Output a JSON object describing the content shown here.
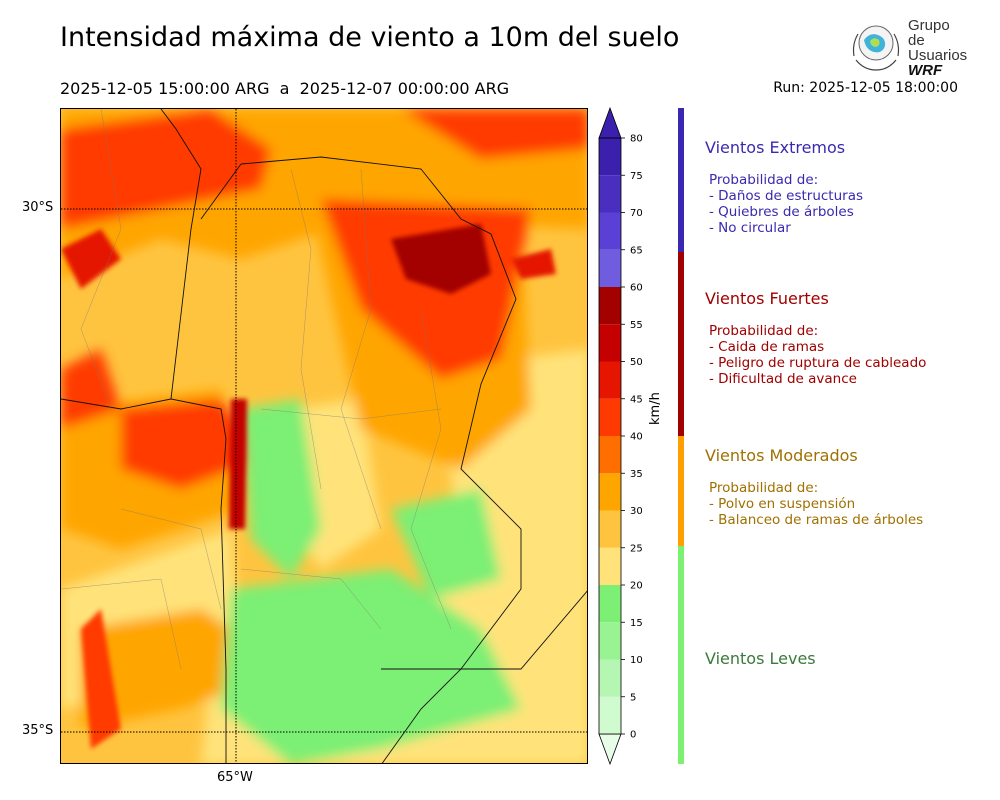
{
  "header": {
    "title": "Intensidad máxima de viento a 10m del suelo",
    "period": "2025-12-05 15:00:00 ARG  a  2025-12-07 00:00:00 ARG",
    "run": "Run: 2025-12-05 18:00:00"
  },
  "logo": {
    "line1": "Grupo de",
    "line2": "Usuarios",
    "line3": "WRF"
  },
  "map": {
    "lat_labels": [
      "30°S",
      "35°S"
    ],
    "lon_labels": [
      "65°W"
    ]
  },
  "colorbar": {
    "unit": "km/h",
    "ticks": [
      "0",
      "5",
      "10",
      "15",
      "20",
      "25",
      "30",
      "35",
      "40",
      "45",
      "50",
      "55",
      "60",
      "65",
      "70",
      "75",
      "80"
    ],
    "colors": [
      "#e8fde8",
      "#d0fbcf",
      "#b5f7b2",
      "#99f393",
      "#7cef74",
      "#ffe37a",
      "#ffc43f",
      "#ffa500",
      "#ff6e00",
      "#ff3a00",
      "#e51500",
      "#c40000",
      "#a30000",
      "#6f5cdf",
      "#5a40d4",
      "#4a2ec0",
      "#3a20ac"
    ]
  },
  "legend": {
    "categories": [
      {
        "title": "Vientos Extremos",
        "desc": "Probabilidad de:\n- Daños de estructuras\n- Quiebres de árboles\n- No circular",
        "color": "#3a29b0"
      },
      {
        "title": "Vientos Fuertes",
        "desc": "Probabilidad de:\n- Caida de ramas\n- Peligro de ruptura de cableado\n- Dificultad de avance",
        "color": "#a00000"
      },
      {
        "title": "Vientos Moderados",
        "desc": "Probabilidad de:\n- Polvo en suspensión\n- Balanceo de ramas de árboles",
        "color": "#a07000"
      },
      {
        "title": "Vientos Leves",
        "desc": "",
        "color": "#3a7a3a"
      }
    ],
    "bar_colors": [
      "#3a29b0",
      "#a00000",
      "#ffa000",
      "#7cf070"
    ]
  }
}
